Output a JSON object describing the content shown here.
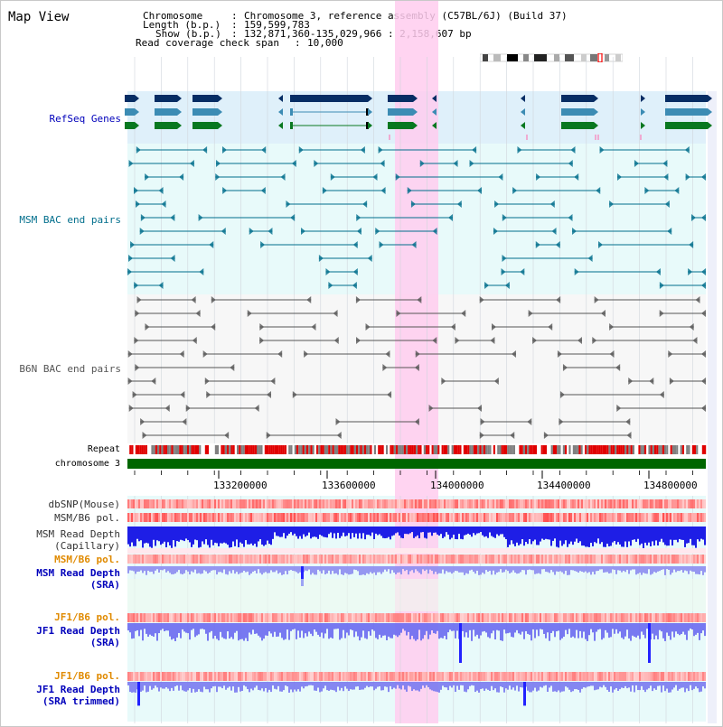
{
  "header": {
    "title": "Map View",
    "chromosome_label": "Chromosome",
    "chromosome_value": "Chromosome 3, reference assembly (C57BL/6J) (Build 37)",
    "length_label": "Length (b.p.)",
    "length_value": "159,599,783",
    "show_label": "Show (b.p.)",
    "show_value": "132,871,360-135,029,966 : 2,158,607 bp",
    "coverage_label": "Read coverage check span",
    "coverage_value": "10,000"
  },
  "tracks": {
    "refseq": {
      "label": "RefSeq Genes",
      "color": "#0000bb"
    },
    "msm_bac": {
      "label": "MSM BAC end pairs",
      "color": "#006e8c"
    },
    "b6n_bac": {
      "label": "B6N BAC end pairs",
      "color": "#555555"
    },
    "repeat": {
      "label": "Repeat"
    },
    "chromosome": {
      "label": "chromosome 3"
    },
    "dbsnp": {
      "label": "dbSNP(Mouse)"
    },
    "msm_b6_pol_1": {
      "label": "MSM/B6 pol."
    },
    "msm_read_cap": {
      "label_line1": "MSM Read Depth",
      "label_line2": "(Capillary)"
    },
    "msm_b6_pol_2": {
      "label": "MSM/B6 pol.",
      "color": "#e08a00"
    },
    "msm_read_sra": {
      "label_line1": "MSM Read Depth",
      "label_line2": "(SRA)",
      "color": "#0000bb"
    },
    "jf1_b6_pol_1": {
      "label": "JF1/B6 pol.",
      "color": "#e08a00"
    },
    "jf1_read_sra": {
      "label_line1": "JF1 Read Depth",
      "label_line2": "(SRA)",
      "color": "#0000bb"
    },
    "jf1_b6_pol_2": {
      "label": "JF1/B6 pol.",
      "color": "#e08a00"
    },
    "jf1_read_trim": {
      "label_line1": "JF1 Read Depth",
      "label_line2": "(SRA trimmed)",
      "color": "#0000bb"
    }
  },
  "axis": {
    "ticks": [
      "133200000",
      "133600000",
      "134000000",
      "134400000",
      "134800000"
    ]
  },
  "colors": {
    "highlight": "#ffccee",
    "refseq_bg": "#dff0fa",
    "msm_bg": "#e8fafa",
    "b6n_bg": "#f4f4f4",
    "chrom_bar": "#006600",
    "gene_dark": "#062d64",
    "gene_mid": "#3c8cb4",
    "gene_green": "#087820"
  }
}
